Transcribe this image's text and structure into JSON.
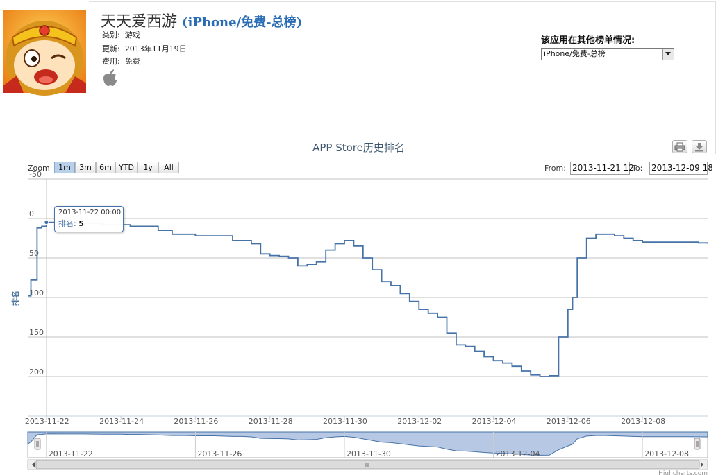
{
  "app": {
    "name": "天天爱西游",
    "list_tag": "(iPhone/免费-总榜)",
    "category_label": "类别:",
    "category_value": "游戏",
    "updated_label": "更新:",
    "updated_value": "2013年11月19日",
    "price_label": "费用:",
    "price_value": "免费",
    "platform_icon": "apple-icon"
  },
  "other_charts": {
    "label": "该应用在其他榜单情况:",
    "selected": "iPhone/免费-总榜"
  },
  "chart_title": "APP Store历史排名",
  "toolbar": {
    "zoom_label": "Zoom",
    "zoom_buttons": [
      "1m",
      "3m",
      "6m",
      "YTD",
      "1y",
      "All"
    ],
    "active_zoom": "1m",
    "from_label": "From:",
    "from_value": "2013-11-21 12",
    "to_label": "To:",
    "to_value": "2013-12-09 18"
  },
  "tooltip": {
    "date": "2013-11-22 00:00",
    "rank_label": "排名:",
    "rank_value": "5"
  },
  "credit": "Highcharts.com",
  "colors": {
    "line": "#4572a7",
    "navigator_fill": "#b7c8e4",
    "active_zoom": "#b9d0ea",
    "title": "#3e576f"
  },
  "chart_data": {
    "type": "line",
    "ylabel": "排名",
    "y_reversed": true,
    "ylim": [
      -50,
      250
    ],
    "y_ticks": [
      -50,
      0,
      50,
      100,
      150,
      200
    ],
    "x_tick_labels": [
      "2013-11-22",
      "2013-11-24",
      "2013-11-26",
      "2013-11-28",
      "2013-11-30",
      "2013-12-02",
      "2013-12-04",
      "2013-12-06",
      "2013-12-08"
    ],
    "navigator_tick_labels": [
      "2013-11-22",
      "2013-11-26",
      "2013-11-30",
      "2013-12-04",
      "2013-12-08"
    ],
    "xlim": [
      "2013-11-21 12:00",
      "2013-12-09 18:00"
    ],
    "series": [
      {
        "x": [
          "2013-11-21 12:00",
          "2013-11-21 14:00",
          "2013-11-21 18:00",
          "2013-11-21 21:00",
          "2013-11-22 00:00",
          "2013-11-22 12:00",
          "2013-11-23 00:00",
          "2013-11-23 12:00",
          "2013-11-24 00:00",
          "2013-11-24 06:00",
          "2013-11-24 12:00",
          "2013-11-25 00:00",
          "2013-11-25 09:00",
          "2013-11-25 18:00",
          "2013-11-26 00:00",
          "2013-11-26 12:00",
          "2013-11-27 00:00",
          "2013-11-27 06:00",
          "2013-11-27 12:00",
          "2013-11-27 18:00",
          "2013-11-28 00:00",
          "2013-11-28 06:00",
          "2013-11-28 12:00",
          "2013-11-28 18:00",
          "2013-11-29 00:00",
          "2013-11-29 06:00",
          "2013-11-29 12:00",
          "2013-11-29 18:00",
          "2013-11-30 00:00",
          "2013-11-30 06:00",
          "2013-11-30 12:00",
          "2013-11-30 18:00",
          "2013-12-01 00:00",
          "2013-12-01 06:00",
          "2013-12-01 12:00",
          "2013-12-01 18:00",
          "2013-12-02 00:00",
          "2013-12-02 06:00",
          "2013-12-02 12:00",
          "2013-12-02 18:00",
          "2013-12-03 00:00",
          "2013-12-03 06:00",
          "2013-12-03 12:00",
          "2013-12-03 18:00",
          "2013-12-04 00:00",
          "2013-12-04 06:00",
          "2013-12-04 12:00",
          "2013-12-04 18:00",
          "2013-12-05 00:00",
          "2013-12-05 06:00",
          "2013-12-05 12:00",
          "2013-12-05 18:00",
          "2013-12-06 00:00",
          "2013-12-06 03:00",
          "2013-12-06 06:00",
          "2013-12-06 12:00",
          "2013-12-06 18:00",
          "2013-12-07 00:00",
          "2013-12-07 06:00",
          "2013-12-07 12:00",
          "2013-12-07 18:00",
          "2013-12-08 00:00",
          "2013-12-08 06:00",
          "2013-12-08 12:00",
          "2013-12-08 18:00",
          "2013-12-09 00:00",
          "2013-12-09 06:00",
          "2013-12-09 12:00",
          "2013-12-09 18:00"
        ],
        "y": [
          98,
          78,
          12,
          10,
          5,
          6,
          6,
          8,
          8,
          10,
          10,
          15,
          20,
          20,
          22,
          22,
          28,
          28,
          32,
          45,
          47,
          48,
          50,
          60,
          58,
          55,
          40,
          32,
          28,
          35,
          50,
          65,
          80,
          85,
          95,
          105,
          115,
          120,
          125,
          145,
          160,
          162,
          168,
          175,
          180,
          183,
          187,
          193,
          198,
          200,
          199,
          150,
          115,
          100,
          50,
          25,
          20,
          20,
          22,
          25,
          28,
          30,
          30,
          30,
          30,
          30,
          30,
          31,
          32
        ]
      }
    ]
  }
}
